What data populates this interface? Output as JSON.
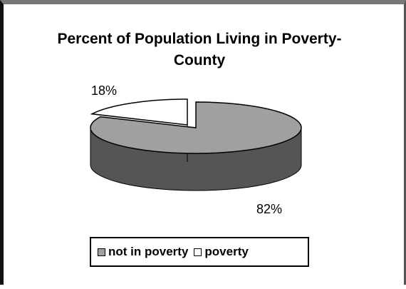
{
  "chart_data": {
    "type": "pie",
    "title": "Percent of Population Living in Poverty-County",
    "slices": [
      {
        "label": "not in poverty",
        "value": 82,
        "display": "82%",
        "color": "#a0a0a0",
        "side_color": "#555555"
      },
      {
        "label": "poverty",
        "value": 18,
        "display": "18%",
        "color": "#ffffff",
        "side_color": "#555555",
        "exploded": true
      }
    ],
    "style": "3d-pie",
    "legend_position": "bottom"
  }
}
